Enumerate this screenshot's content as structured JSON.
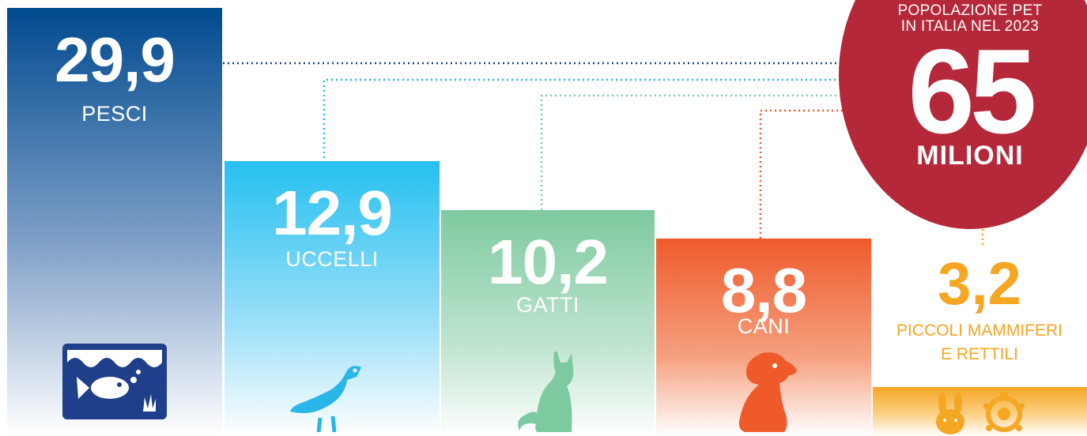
{
  "chart_data": {
    "type": "bar",
    "title": "POPOLAZIONE PET IN ITALIA NEL 2023",
    "total": {
      "value": "65",
      "unit": "MILIONI"
    },
    "categories": [
      "PESCI",
      "UCCELLI",
      "GATTI",
      "CANI",
      "PICCOLI MAMMIFERI E RETTILI"
    ],
    "values": [
      29.9,
      12.9,
      10.2,
      8.8,
      3.2
    ],
    "value_labels": [
      "29,9",
      "12,9",
      "10,2",
      "8,8",
      "3,2"
    ],
    "ylim": [
      0,
      29.9
    ]
  },
  "circle": {
    "title_line1": "POPOLAZIONE PET",
    "title_line2": "IN ITALIA NEL 2023",
    "big_number": "65",
    "unit": "MILIONI"
  },
  "bars": [
    {
      "value": "29,9",
      "label": "PESCI",
      "icon": "aquarium-fish-icon"
    },
    {
      "value": "12,9",
      "label": "UCCELLI",
      "icon": "bird-icon"
    },
    {
      "value": "10,2",
      "label": "GATTI",
      "icon": "cat-icon"
    },
    {
      "value": "8,8",
      "label": "CANI",
      "icon": "dog-icon"
    },
    {
      "value": "3,2",
      "label_line1": "PICCOLI MAMMIFERI",
      "label_line2": "E RETTILI",
      "icons": [
        "rabbit-icon",
        "turtle-icon"
      ]
    }
  ],
  "colors": {
    "pesci": "#004a8f",
    "uccelli": "#25c0f0",
    "gatti": "#7ecaa0",
    "cani": "#ef5a2a",
    "piccoli": "#f5a623",
    "circle": "#b5283a"
  }
}
